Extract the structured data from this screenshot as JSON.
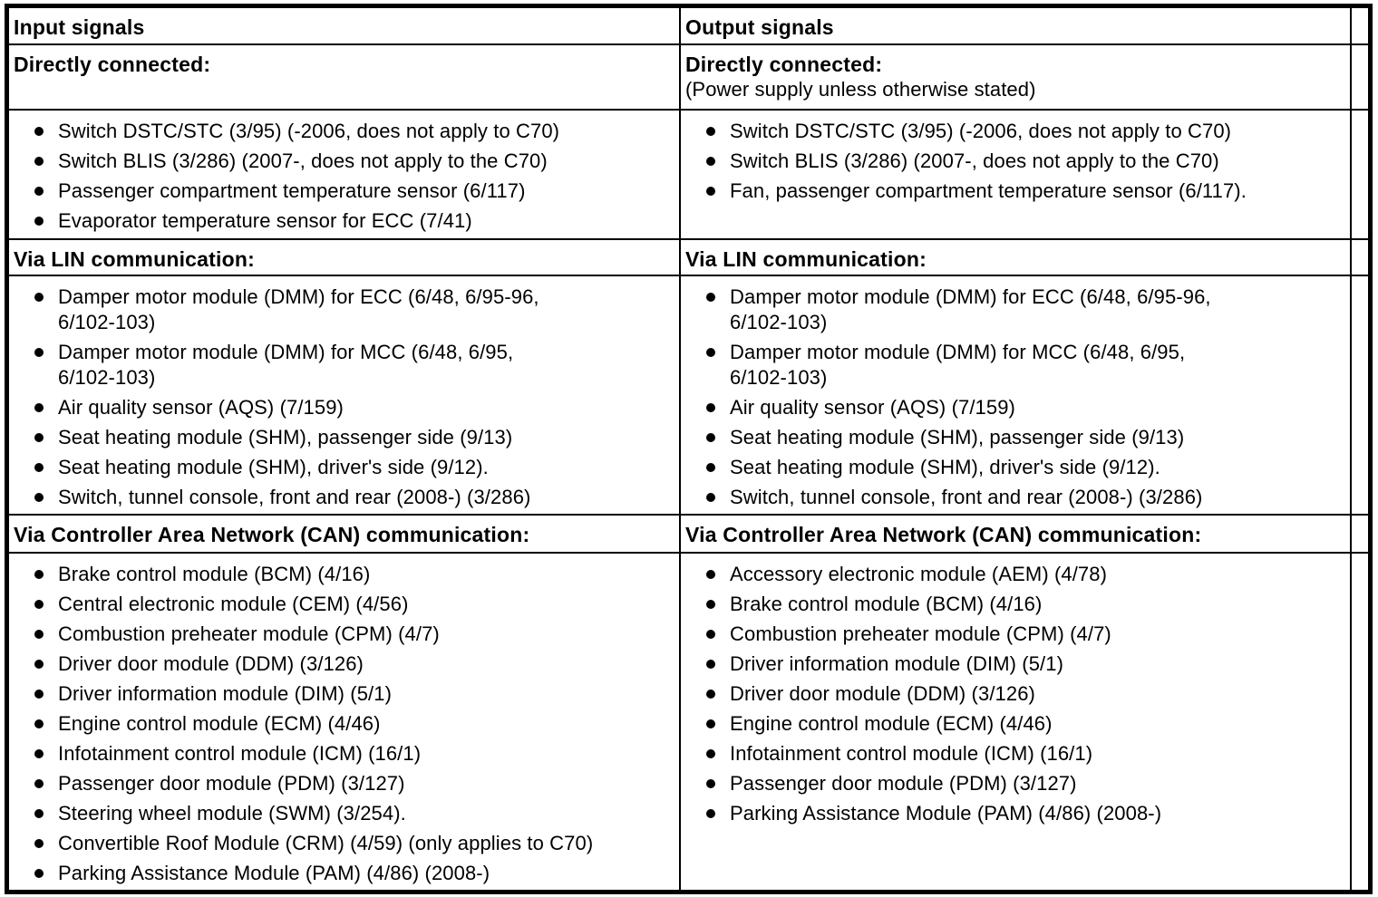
{
  "colors": {
    "border": "#000000",
    "background": "#ffffff",
    "text": "#000000"
  },
  "table": {
    "columns": [
      {
        "header": "Input signals",
        "sections": [
          {
            "title": "Directly connected:",
            "items": [
              "Switch DSTC/STC (3/95) (-2006, does not apply to C70)",
              "Switch BLIS (3/286) (2007-, does not apply to the C70)",
              "Passenger compartment temperature sensor (6/117)",
              "Evaporator temperature sensor for ECC (7/41)"
            ]
          },
          {
            "title": "Via LIN communication:",
            "items": [
              "Damper motor module (DMM) for ECC (6/48, 6/95-96,\n6/102-103)",
              "Damper motor module (DMM) for MCC (6/48, 6/95,\n6/102-103)",
              "Air quality sensor (AQS) (7/159)",
              "Seat heating module (SHM), passenger side (9/13)",
              "Seat heating module (SHM), driver's side (9/12).",
              "Switch, tunnel console, front and rear (2008-) (3/286)"
            ]
          },
          {
            "title": "Via Controller Area Network (CAN) communication:",
            "items": [
              "Brake control module (BCM) (4/16)",
              "Central electronic module (CEM) (4/56)",
              "Combustion preheater module (CPM) (4/7)",
              "Driver door module (DDM) (3/126)",
              "Driver information module (DIM) (5/1)",
              "Engine control module (ECM) (4/46)",
              "Infotainment control module (ICM) (16/1)",
              "Passenger door module (PDM) (3/127)",
              "Steering wheel module (SWM) (3/254).",
              "Convertible Roof Module (CRM) (4/59) (only applies to C70)",
              "Parking Assistance Module (PAM) (4/86) (2008-)"
            ]
          }
        ]
      },
      {
        "header": "Output signals",
        "sections": [
          {
            "title": "Directly connected:",
            "subtitle": "(Power supply unless otherwise stated)",
            "items": [
              "Switch DSTC/STC (3/95) (-2006, does not apply to C70)",
              "Switch BLIS (3/286) (2007-, does not apply to the C70)",
              "Fan, passenger compartment temperature sensor (6/117)."
            ]
          },
          {
            "title": "Via LIN communication:",
            "items": [
              "Damper motor module (DMM) for ECC (6/48, 6/95-96,\n6/102-103)",
              "Damper motor module (DMM) for MCC (6/48, 6/95,\n6/102-103)",
              "Air quality sensor (AQS) (7/159)",
              "Seat heating module (SHM), passenger side (9/13)",
              "Seat heating module (SHM), driver's side (9/12).",
              "Switch, tunnel console, front and rear (2008-) (3/286)"
            ]
          },
          {
            "title": "Via Controller Area Network (CAN) communication:",
            "items": [
              "Accessory electronic module (AEM) (4/78)",
              "Brake control module (BCM) (4/16)",
              "Combustion preheater module (CPM) (4/7)",
              "Driver information module (DIM) (5/1)",
              "Driver door module (DDM) (3/126)",
              "Engine control module (ECM) (4/46)",
              "Infotainment control module (ICM) (16/1)",
              "Passenger door module (PDM) (3/127)",
              "Parking Assistance Module (PAM) (4/86) (2008-)"
            ]
          }
        ]
      }
    ]
  }
}
